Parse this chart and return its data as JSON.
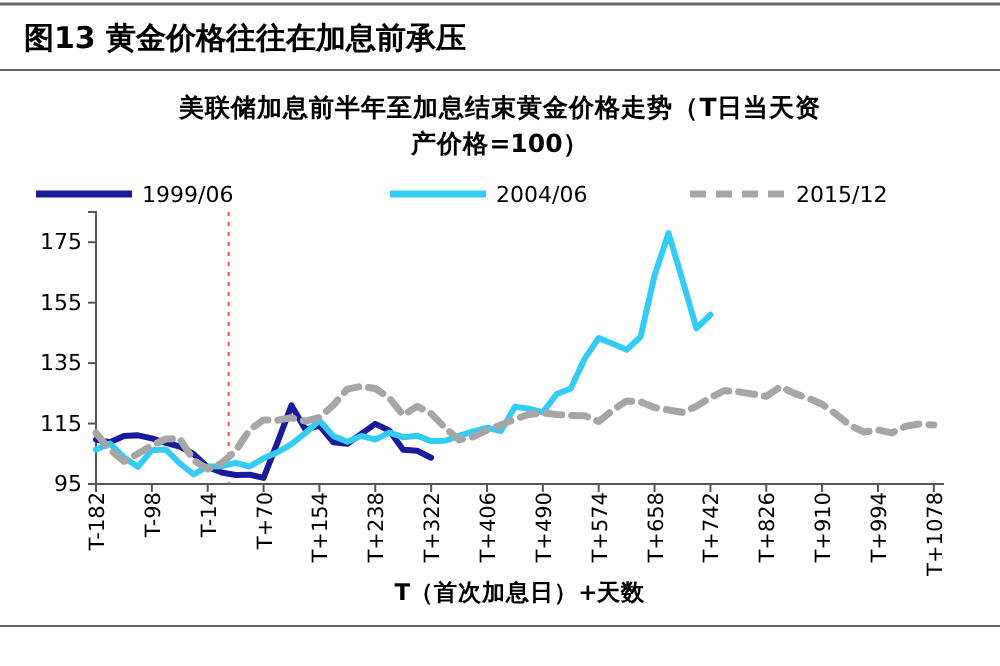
{
  "chart_data": {
    "type": "line",
    "title": "图13 黄金价格往往在加息前承压",
    "subtitle": "美联储加息前半年至加息结束黄金价格走势（T日当天资产价格=100）",
    "xlabel": "T（首次加息日）+天数",
    "categories": [
      "T-182",
      null,
      null,
      null,
      "T-98",
      null,
      null,
      null,
      "T-14",
      null,
      null,
      null,
      "T+70",
      null,
      null,
      null,
      "T+154",
      null,
      null,
      null,
      "T+238",
      null,
      null,
      null,
      "T+322",
      null,
      null,
      null,
      "T+406",
      null,
      null,
      null,
      "T+490",
      null,
      null,
      null,
      "T+574",
      null,
      null,
      null,
      "T+658",
      null,
      null,
      null,
      "T+742",
      null,
      null,
      null,
      "T+826",
      null,
      null,
      null,
      "T+910",
      null,
      null,
      null,
      "T+994",
      null,
      null,
      null,
      "T+1078"
    ],
    "ylim": [
      95,
      185
    ],
    "yticks": [
      95,
      115,
      135,
      155,
      175
    ],
    "grid": false,
    "legend": "top",
    "marker": "none",
    "series": [
      {
        "name": "1999/06",
        "color": "#1a1a9c",
        "line_style": "solid",
        "values": [
          109.7,
          108.8,
          110.9,
          111.1,
          110.1,
          108.6,
          107.4,
          104.9,
          100.6,
          98.8,
          98.0,
          98.1,
          97.0,
          108.8,
          121.0,
          113.0,
          114.3,
          108.8,
          108.3,
          111.6,
          114.9,
          112.7,
          106.3,
          106.0,
          103.7,
          null,
          null,
          null,
          null,
          null,
          null,
          null,
          null,
          null,
          null,
          null,
          null,
          null,
          null,
          null,
          null,
          null,
          null,
          null,
          null,
          null,
          null,
          null,
          null,
          null,
          null,
          null,
          null,
          null,
          null,
          null,
          null,
          null,
          null,
          null,
          null
        ]
      },
      {
        "name": "2004/06",
        "color": "#33ccf5",
        "line_style": "solid",
        "values": [
          106.4,
          108.4,
          103.8,
          100.7,
          106.2,
          106.4,
          101.8,
          98.2,
          100.8,
          100.9,
          102.0,
          100.8,
          103.5,
          105.5,
          108.2,
          111.9,
          116.0,
          110.9,
          109.0,
          110.9,
          109.7,
          112.0,
          110.5,
          111.0,
          109.2,
          109.3,
          110.9,
          112.4,
          113.6,
          112.5,
          120.6,
          119.9,
          118.7,
          124.8,
          126.6,
          136.5,
          143.3,
          141.4,
          139.4,
          143.7,
          164.0,
          178.0,
          162.5,
          146.5,
          151.0,
          null,
          null,
          null,
          null,
          null,
          null,
          null,
          null,
          null,
          null,
          null,
          null,
          null,
          null,
          null,
          null
        ]
      },
      {
        "name": "2015/12",
        "color": "#a6a6a6",
        "line_style": "dashed",
        "values": [
          111.9,
          106.4,
          102.5,
          105.0,
          107.8,
          109.9,
          110.0,
          102.8,
          100.0,
          101.9,
          106.0,
          112.9,
          116.2,
          116.1,
          116.9,
          115.8,
          117.0,
          121.1,
          126.4,
          127.3,
          126.6,
          123.5,
          117.8,
          120.7,
          118.3,
          113.6,
          109.6,
          110.6,
          112.8,
          114.5,
          116.5,
          118.0,
          118.5,
          118.0,
          117.7,
          117.6,
          115.7,
          119.4,
          122.5,
          122.2,
          120.3,
          119.5,
          118.7,
          120.7,
          123.6,
          125.9,
          125.5,
          124.8,
          124.0,
          127.2,
          125.0,
          123.4,
          121.4,
          118.1,
          114.4,
          112.2,
          112.9,
          111.9,
          114.1,
          114.9,
          114.5
        ]
      }
    ]
  }
}
